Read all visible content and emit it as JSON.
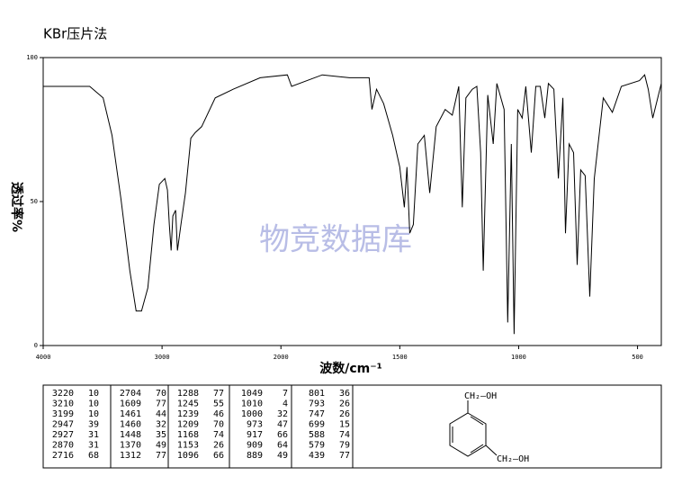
{
  "chart_data": {
    "type": "line",
    "title": "KBr压片法",
    "xlabel": "波数/cm⁻¹",
    "ylabel": "透过率%",
    "xlim": [
      4000,
      400
    ],
    "xticks": [
      4000,
      3000,
      2000,
      1500,
      1000,
      500
    ],
    "ylim": [
      0,
      100
    ],
    "yticks": [
      0,
      50,
      100
    ],
    "color": "#000000",
    "x": [
      4000,
      3609,
      3496,
      3421,
      3346,
      3271,
      3218,
      3173,
      3120,
      3068,
      3023,
      2977,
      2955,
      2939,
      2924,
      2909,
      2886,
      2871,
      2841,
      2803,
      2758,
      2720,
      2667,
      2553,
      2402,
      2174,
      1973,
      1955,
      1826,
      1712,
      1629,
      1617,
      1598,
      1568,
      1530,
      1500,
      1481,
      1470,
      1458,
      1443,
      1424,
      1397,
      1374,
      1347,
      1309,
      1279,
      1252,
      1237,
      1222,
      1195,
      1176,
      1160,
      1149,
      1130,
      1107,
      1092,
      1061,
      1046,
      1031,
      1019,
      1004,
      985,
      970,
      947,
      928,
      909,
      890,
      875,
      852,
      833,
      814,
      803,
      788,
      769,
      754,
      739,
      720,
      701,
      682,
      644,
      606,
      568,
      492,
      470,
      455,
      436,
      400
    ],
    "values": [
      90,
      90,
      86,
      73,
      51,
      26,
      12,
      12,
      20,
      42,
      56,
      58,
      54,
      42,
      33,
      45,
      47,
      33,
      42,
      53,
      72,
      74,
      76,
      86,
      89,
      93,
      94,
      90,
      94,
      93,
      93,
      82,
      89,
      84,
      73,
      62,
      48,
      62,
      39,
      42,
      70,
      73,
      53,
      76,
      82,
      80,
      90,
      48,
      86,
      89,
      90,
      67,
      26,
      87,
      70,
      91,
      82,
      8,
      70,
      4,
      82,
      79,
      90,
      67,
      90,
      90,
      79,
      91,
      89,
      58,
      86,
      39,
      70,
      67,
      28,
      61,
      59,
      17,
      58,
      86,
      81,
      90,
      92,
      94,
      89,
      79,
      91
    ]
  },
  "watermark": "物竞数据库",
  "peak_table": [
    [
      [
        3220,
        10
      ],
      [
        3210,
        10
      ],
      [
        3199,
        10
      ],
      [
        2947,
        39
      ],
      [
        2927,
        31
      ],
      [
        2870,
        31
      ],
      [
        2716,
        68
      ]
    ],
    [
      [
        2704,
        70
      ],
      [
        1609,
        77
      ],
      [
        1461,
        44
      ],
      [
        1460,
        32
      ],
      [
        1448,
        35
      ],
      [
        1370,
        49
      ],
      [
        1312,
        77
      ]
    ],
    [
      [
        1288,
        77
      ],
      [
        1245,
        55
      ],
      [
        1239,
        46
      ],
      [
        1209,
        70
      ],
      [
        1168,
        74
      ],
      [
        1153,
        26
      ],
      [
        1096,
        66
      ]
    ],
    [
      [
        1049,
        7
      ],
      [
        1010,
        4
      ],
      [
        1000,
        32
      ],
      [
        973,
        47
      ],
      [
        917,
        66
      ],
      [
        909,
        64
      ],
      [
        889,
        49
      ]
    ],
    [
      [
        801,
        36
      ],
      [
        793,
        26
      ],
      [
        747,
        26
      ],
      [
        699,
        15
      ],
      [
        588,
        74
      ],
      [
        579,
        79
      ],
      [
        439,
        77
      ]
    ]
  ],
  "structure": {
    "labels": [
      "CH₂—OH",
      "CH₂—OH"
    ]
  }
}
